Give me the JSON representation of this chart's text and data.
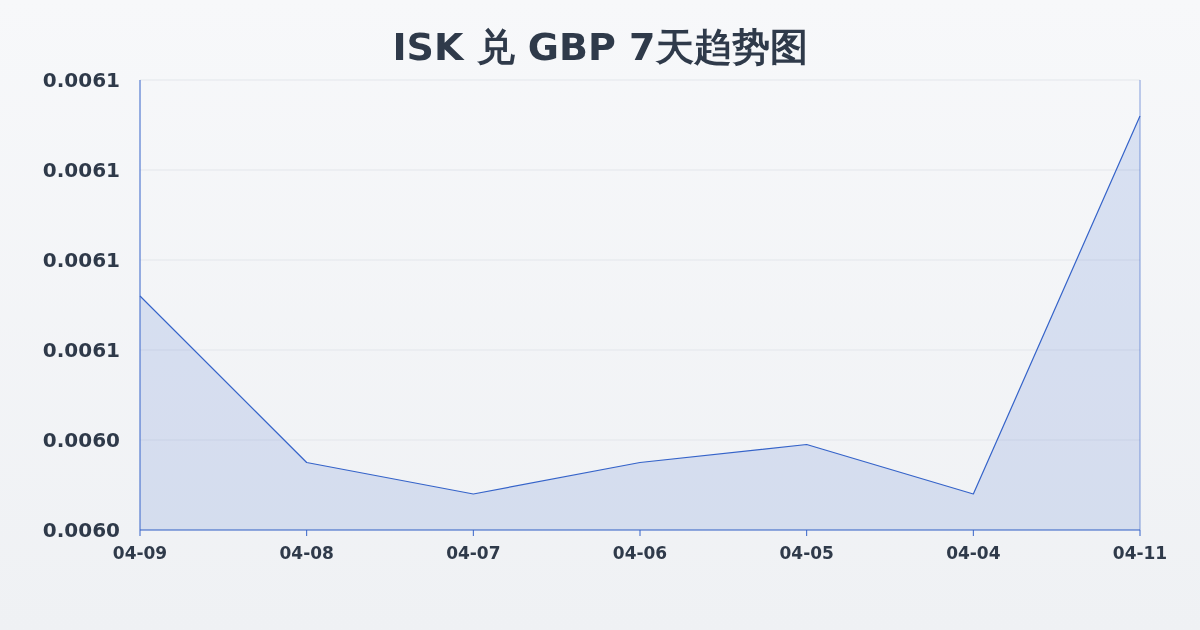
{
  "chart_data": {
    "type": "area",
    "title": "ISK 兑 GBP 7天趋势图",
    "categories": [
      "04-09",
      "04-08",
      "04-07",
      "04-06",
      "04-05",
      "04-04",
      "04-11"
    ],
    "values": [
      0.006072,
      0.006035,
      0.006028,
      0.006035,
      0.006039,
      0.006028,
      0.006112
    ],
    "color": "#3563c9",
    "ylim": [
      0.00602,
      0.00612
    ],
    "yticks": [
      {
        "value": 0.00602,
        "label": "0.0060"
      },
      {
        "value": 0.00604,
        "label": "0.0060"
      },
      {
        "value": 0.00606,
        "label": "0.0061"
      },
      {
        "value": 0.00608,
        "label": "0.0061"
      },
      {
        "value": 0.0061,
        "label": "0.0061"
      },
      {
        "value": 0.00612,
        "label": "0.0061"
      }
    ],
    "grid": "y"
  }
}
